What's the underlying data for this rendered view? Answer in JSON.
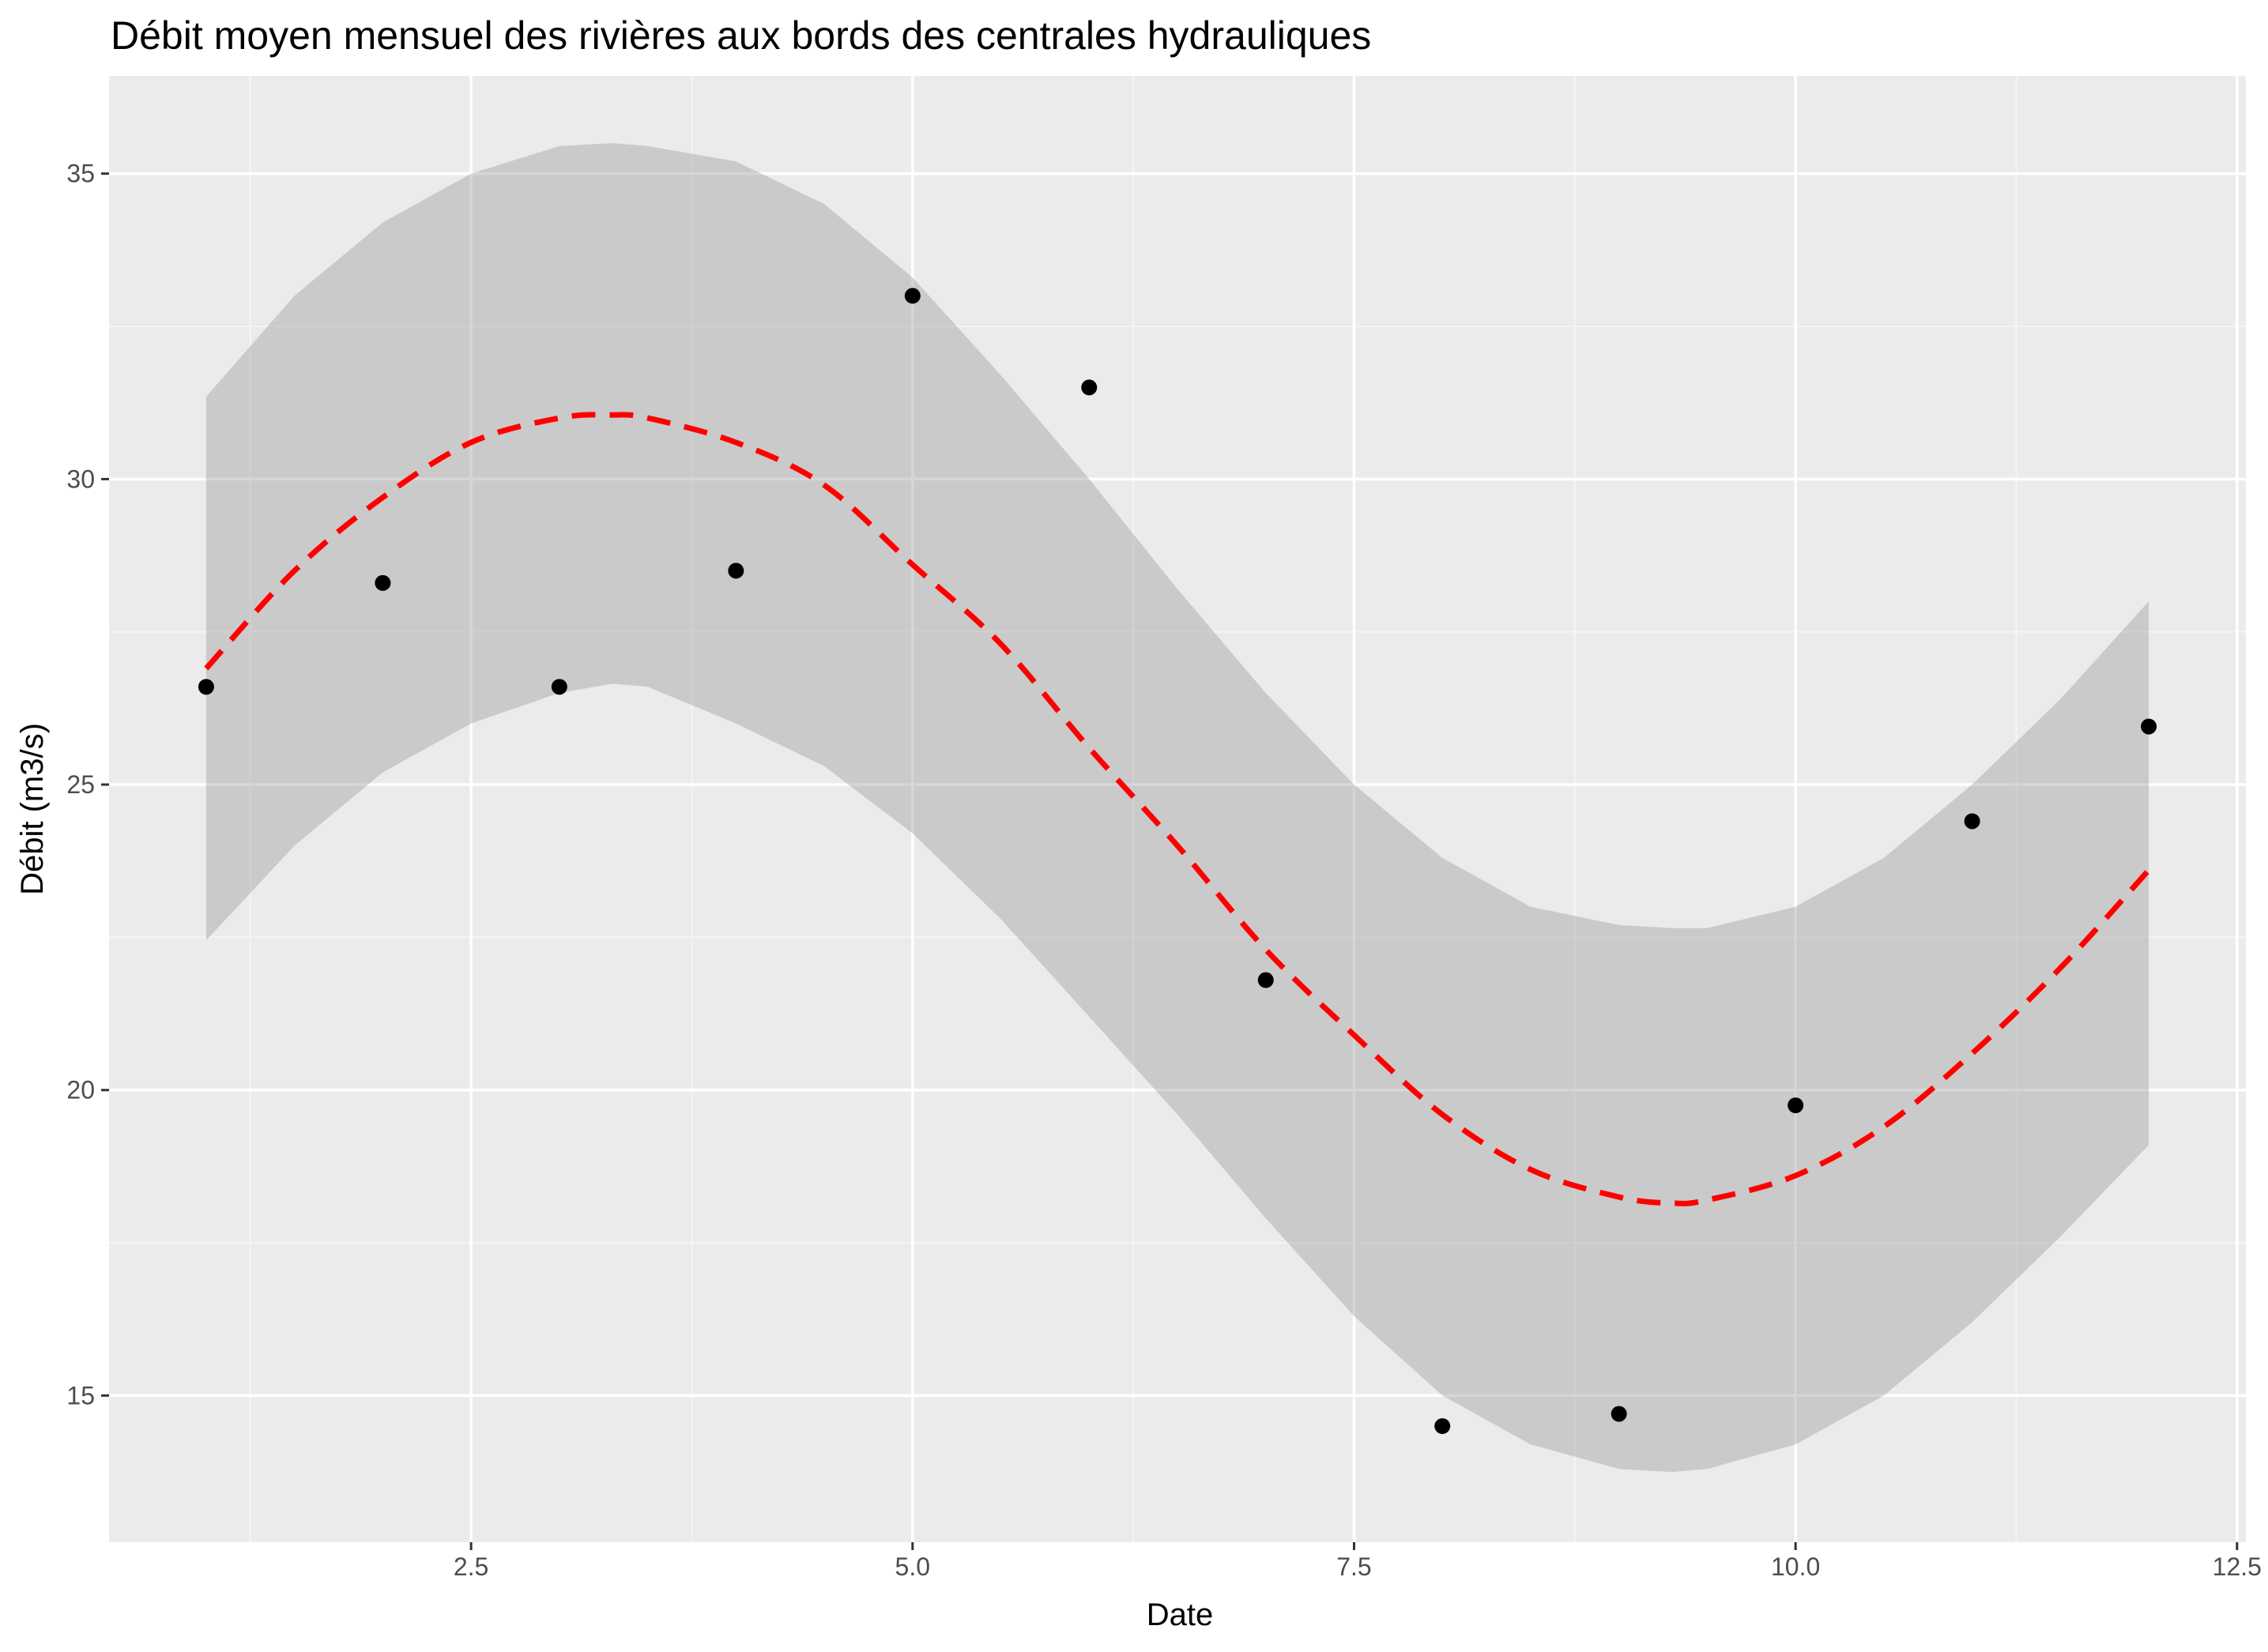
{
  "chart_data": {
    "type": "scatter",
    "title": "Débit moyen mensuel des rivières aux bords des centrales hydrauliques",
    "xlabel": "Date",
    "ylabel": "Débit (m3/s)",
    "xlim": [
      0.45,
      12.55
    ],
    "ylim": [
      12.6,
      36.6
    ],
    "x_ticks": [
      2.5,
      5.0,
      7.5,
      10.0,
      12.5
    ],
    "x_tick_labels": [
      "2.5",
      "5.0",
      "7.5",
      "10.0",
      "12.5"
    ],
    "y_ticks": [
      15,
      20,
      25,
      30,
      35
    ],
    "y_tick_labels": [
      "15",
      "20",
      "25",
      "30",
      "35"
    ],
    "grid": true,
    "points": {
      "x": [
        1,
        2,
        3,
        4,
        5,
        6,
        7,
        8,
        9,
        10,
        11,
        12
      ],
      "y": [
        26.6,
        28.3,
        26.6,
        28.5,
        33.0,
        31.5,
        21.8,
        14.5,
        14.7,
        19.75,
        24.4,
        25.95
      ],
      "color": "#000000"
    },
    "trend": {
      "style": "dashed",
      "color": "#ff0000",
      "x": [
        1.0,
        1.5,
        2.0,
        2.5,
        3.0,
        3.3,
        3.5,
        4.0,
        4.5,
        5.0,
        5.5,
        6.0,
        6.5,
        7.0,
        7.5,
        8.0,
        8.5,
        9.0,
        9.3,
        9.5,
        10.0,
        10.5,
        11.0,
        11.5,
        12.0
      ],
      "y": [
        26.9,
        28.5,
        29.7,
        30.6,
        31.0,
        31.05,
        31.0,
        30.6,
        29.9,
        28.6,
        27.3,
        25.6,
        24.0,
        22.3,
        20.9,
        19.6,
        18.7,
        18.25,
        18.15,
        18.2,
        18.6,
        19.4,
        20.6,
        22.0,
        23.6
      ],
      "ci_lower": [
        22.45,
        24.0,
        25.2,
        26.0,
        26.5,
        26.65,
        26.6,
        26.0,
        25.3,
        24.2,
        22.8,
        21.2,
        19.6,
        17.9,
        16.3,
        15.0,
        14.2,
        13.8,
        13.75,
        13.8,
        14.2,
        15.0,
        16.2,
        17.6,
        19.1
      ],
      "ci_upper": [
        31.35,
        33.0,
        34.2,
        35.0,
        35.45,
        35.5,
        35.45,
        35.2,
        34.5,
        33.3,
        31.7,
        30.0,
        28.2,
        26.5,
        25.0,
        23.8,
        23.0,
        22.7,
        22.65,
        22.65,
        23.0,
        23.8,
        25.0,
        26.4,
        28.0
      ],
      "ci_color": "#999999"
    },
    "colors": {
      "panel_background": "#ebebeb",
      "grid_major": "#ffffff",
      "grid_minor": "#f5f5f5",
      "tick_text": "#4d4d4d",
      "tick_mark": "#333333"
    }
  }
}
